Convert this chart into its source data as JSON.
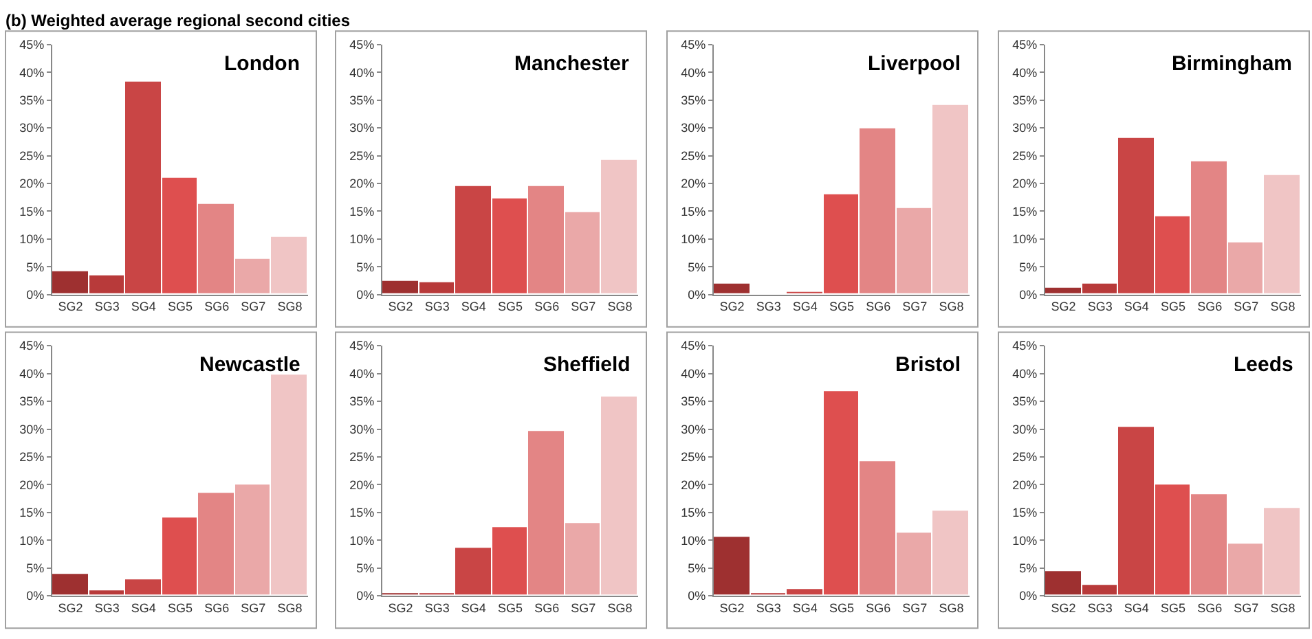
{
  "chart_data": [
    {
      "type": "bar",
      "title": "London",
      "annotations": [
        "(b) Weighted average regional second cities"
      ],
      "categories": [
        "SG2",
        "SG3",
        "SG4",
        "SG5",
        "SG6",
        "SG7",
        "SG8"
      ],
      "values": [
        4.1,
        3.5,
        38.3,
        21.1,
        16.2,
        6.5,
        10.3
      ],
      "colors": [
        "#9e3030",
        "#b83a3a",
        "#c94545",
        "#de4f4f",
        "#e38585",
        "#eaa8a8",
        "#f0c5c5"
      ],
      "ylim": [
        0,
        45
      ],
      "yticks": [
        {
          "value": 0,
          "label": "0%"
        },
        {
          "value": 5,
          "label": "5%"
        },
        {
          "value": 10,
          "label": "10%"
        },
        {
          "value": 15,
          "label": "15%"
        },
        {
          "value": 20,
          "label": "20%"
        },
        {
          "value": 25,
          "label": "25%"
        },
        {
          "value": 30,
          "label": "30%"
        },
        {
          "value": 35,
          "label": "35%"
        },
        {
          "value": 40,
          "label": "40%"
        },
        {
          "value": 45,
          "label": "45%"
        }
      ]
    },
    {
      "type": "bar",
      "title": "Manchester",
      "categories": [
        "SG2",
        "SG3",
        "SG4",
        "SG5",
        "SG6",
        "SG7",
        "SG8"
      ],
      "values": [
        2.5,
        2.3,
        19.5,
        17.3,
        19.6,
        14.9,
        24.2
      ],
      "colors": [
        "#9e3030",
        "#b83a3a",
        "#c94545",
        "#de4f4f",
        "#e38585",
        "#eaa8a8",
        "#f0c5c5"
      ],
      "ylim": [
        0,
        45
      ],
      "yticks": [
        {
          "value": 0,
          "label": "0%"
        },
        {
          "value": 5,
          "label": "5%"
        },
        {
          "value": 10,
          "label": "10%"
        },
        {
          "value": 15,
          "label": "15%"
        },
        {
          "value": 20,
          "label": "20%"
        },
        {
          "value": 25,
          "label": "25%"
        },
        {
          "value": 30,
          "label": "30%"
        },
        {
          "value": 35,
          "label": "35%"
        },
        {
          "value": 40,
          "label": "40%"
        },
        {
          "value": 45,
          "label": "45%"
        }
      ]
    },
    {
      "type": "bar",
      "title": "Liverpool",
      "categories": [
        "SG2",
        "SG3",
        "SG4",
        "SG5",
        "SG6",
        "SG7",
        "SG8"
      ],
      "values": [
        2.0,
        0.2,
        0.6,
        18.0,
        30.0,
        15.5,
        34.0
      ],
      "colors": [
        "#9e3030",
        "#b83a3a",
        "#c94545",
        "#de4f4f",
        "#e38585",
        "#eaa8a8",
        "#f0c5c5"
      ],
      "ylim": [
        0,
        45
      ],
      "yticks": [
        {
          "value": 0,
          "label": "0%"
        },
        {
          "value": 5,
          "label": "5%"
        },
        {
          "value": 10,
          "label": "10%"
        },
        {
          "value": 15,
          "label": "15%"
        },
        {
          "value": 20,
          "label": "20%"
        },
        {
          "value": 25,
          "label": "25%"
        },
        {
          "value": 30,
          "label": "30%"
        },
        {
          "value": 35,
          "label": "35%"
        },
        {
          "value": 40,
          "label": "40%"
        },
        {
          "value": 45,
          "label": "45%"
        }
      ]
    },
    {
      "type": "bar",
      "title": "Birmingham",
      "categories": [
        "SG2",
        "SG3",
        "SG4",
        "SG5",
        "SG6",
        "SG7",
        "SG8"
      ],
      "values": [
        1.2,
        2.0,
        28.1,
        14.0,
        24.0,
        9.5,
        21.6
      ],
      "colors": [
        "#9e3030",
        "#b83a3a",
        "#c94545",
        "#de4f4f",
        "#e38585",
        "#eaa8a8",
        "#f0c5c5"
      ],
      "ylim": [
        0,
        45
      ],
      "yticks": [
        {
          "value": 0,
          "label": "0%"
        },
        {
          "value": 5,
          "label": "5%"
        },
        {
          "value": 10,
          "label": "10%"
        },
        {
          "value": 15,
          "label": "15%"
        },
        {
          "value": 20,
          "label": "20%"
        },
        {
          "value": 25,
          "label": "25%"
        },
        {
          "value": 30,
          "label": "30%"
        },
        {
          "value": 35,
          "label": "35%"
        },
        {
          "value": 40,
          "label": "40%"
        },
        {
          "value": 45,
          "label": "45%"
        }
      ]
    },
    {
      "type": "bar",
      "title": "Newcastle",
      "categories": [
        "SG2",
        "SG3",
        "SG4",
        "SG5",
        "SG6",
        "SG7",
        "SG8"
      ],
      "values": [
        3.9,
        1.0,
        2.9,
        14.1,
        18.5,
        20.1,
        39.9
      ],
      "colors": [
        "#9e3030",
        "#b83a3a",
        "#c94545",
        "#de4f4f",
        "#e38585",
        "#eaa8a8",
        "#f0c5c5"
      ],
      "ylim": [
        0,
        45
      ],
      "yticks": [
        {
          "value": 0,
          "label": "0%"
        },
        {
          "value": 5,
          "label": "5%"
        },
        {
          "value": 10,
          "label": "10%"
        },
        {
          "value": 15,
          "label": "15%"
        },
        {
          "value": 20,
          "label": "20%"
        },
        {
          "value": 25,
          "label": "25%"
        },
        {
          "value": 30,
          "label": "30%"
        },
        {
          "value": 35,
          "label": "35%"
        },
        {
          "value": 40,
          "label": "40%"
        },
        {
          "value": 45,
          "label": "45%"
        }
      ]
    },
    {
      "type": "bar",
      "title": "Sheffield",
      "categories": [
        "SG2",
        "SG3",
        "SG4",
        "SG5",
        "SG6",
        "SG7",
        "SG8"
      ],
      "values": [
        0.4,
        0.4,
        8.6,
        12.4,
        29.6,
        13.0,
        35.8
      ],
      "colors": [
        "#9e3030",
        "#b83a3a",
        "#c94545",
        "#de4f4f",
        "#e38585",
        "#eaa8a8",
        "#f0c5c5"
      ],
      "ylim": [
        0,
        45
      ],
      "yticks": [
        {
          "value": 0,
          "label": "0%"
        },
        {
          "value": 5,
          "label": "5%"
        },
        {
          "value": 10,
          "label": "10%"
        },
        {
          "value": 15,
          "label": "15%"
        },
        {
          "value": 20,
          "label": "20%"
        },
        {
          "value": 25,
          "label": "25%"
        },
        {
          "value": 30,
          "label": "30%"
        },
        {
          "value": 35,
          "label": "35%"
        },
        {
          "value": 40,
          "label": "40%"
        },
        {
          "value": 45,
          "label": "45%"
        }
      ]
    },
    {
      "type": "bar",
      "title": "Bristol",
      "categories": [
        "SG2",
        "SG3",
        "SG4",
        "SG5",
        "SG6",
        "SG7",
        "SG8"
      ],
      "values": [
        10.7,
        0.4,
        1.3,
        36.8,
        24.3,
        11.4,
        15.3
      ],
      "colors": [
        "#9e3030",
        "#b83a3a",
        "#c94545",
        "#de4f4f",
        "#e38585",
        "#eaa8a8",
        "#f0c5c5"
      ],
      "ylim": [
        0,
        45
      ],
      "yticks": [
        {
          "value": 0,
          "label": "0%"
        },
        {
          "value": 5,
          "label": "5%"
        },
        {
          "value": 10,
          "label": "10%"
        },
        {
          "value": 15,
          "label": "15%"
        },
        {
          "value": 20,
          "label": "20%"
        },
        {
          "value": 25,
          "label": "25%"
        },
        {
          "value": 30,
          "label": "30%"
        },
        {
          "value": 35,
          "label": "35%"
        },
        {
          "value": 40,
          "label": "40%"
        },
        {
          "value": 45,
          "label": "45%"
        }
      ]
    },
    {
      "type": "bar",
      "title": "Leeds",
      "categories": [
        "SG2",
        "SG3",
        "SG4",
        "SG5",
        "SG6",
        "SG7",
        "SG8"
      ],
      "values": [
        4.5,
        1.9,
        30.3,
        20.0,
        18.3,
        9.5,
        15.9
      ],
      "colors": [
        "#9e3030",
        "#b83a3a",
        "#c94545",
        "#de4f4f",
        "#e38585",
        "#eaa8a8",
        "#f0c5c5"
      ],
      "ylim": [
        0,
        45
      ],
      "yticks": [
        {
          "value": 0,
          "label": "0%"
        },
        {
          "value": 5,
          "label": "5%"
        },
        {
          "value": 10,
          "label": "10%"
        },
        {
          "value": 15,
          "label": "15%"
        },
        {
          "value": 20,
          "label": "20%"
        },
        {
          "value": 25,
          "label": "25%"
        },
        {
          "value": 30,
          "label": "30%"
        },
        {
          "value": 35,
          "label": "35%"
        },
        {
          "value": 40,
          "label": "40%"
        },
        {
          "value": 45,
          "label": "45%"
        }
      ]
    }
  ]
}
